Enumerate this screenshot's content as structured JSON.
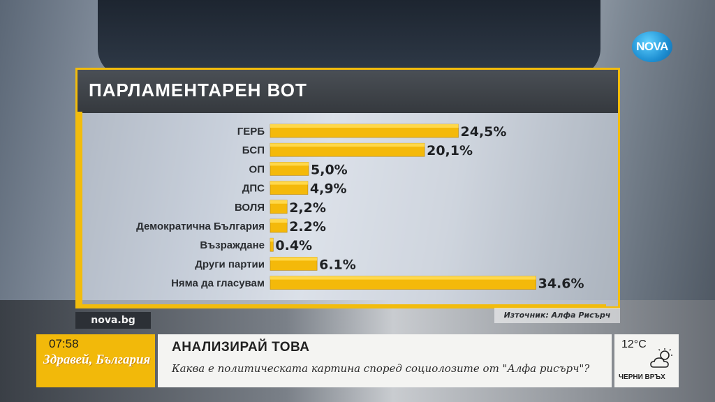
{
  "header": {
    "title": "ПАРЛАМЕНТАРЕН ВОТ"
  },
  "source": "Източник: Алфа Рисърч",
  "site": "nova.bg",
  "logo": "NOVA",
  "colors": {
    "accent": "#f2bc0c",
    "bar": "#f4b90a",
    "header": "#3d4247"
  },
  "chart_data": {
    "type": "bar",
    "orientation": "horizontal",
    "title": "ПАРЛАМЕНТАРЕН ВОТ",
    "categories": [
      "ГЕРБ",
      "БСП",
      "ОП",
      "ДПС",
      "ВОЛЯ",
      "Демократична България",
      "Възраждане",
      "Други партии",
      "Няма да гласувам"
    ],
    "values": [
      24.5,
      20.1,
      5.0,
      4.9,
      2.2,
      2.2,
      0.4,
      6.1,
      34.6
    ],
    "value_labels": [
      "24,5%",
      "20,1%",
      "5,0%",
      "4,9%",
      "2,2%",
      "2.2%",
      "0.4%",
      "6.1%",
      "34.6%"
    ],
    "xlim": [
      0,
      35
    ],
    "grid": false,
    "legend": "none"
  },
  "ticker": {
    "time": "07:58",
    "show": "Здравей, България",
    "headline": "АНАЛИЗИРАЙ ТОВА",
    "subtitle": "Каква е политическата картина според социолозите от \"Алфа рисърч\"?",
    "temperature": "12°C",
    "location": "ЧЕРНИ ВРЪХ",
    "weather_icon": "partly-cloudy-icon"
  }
}
